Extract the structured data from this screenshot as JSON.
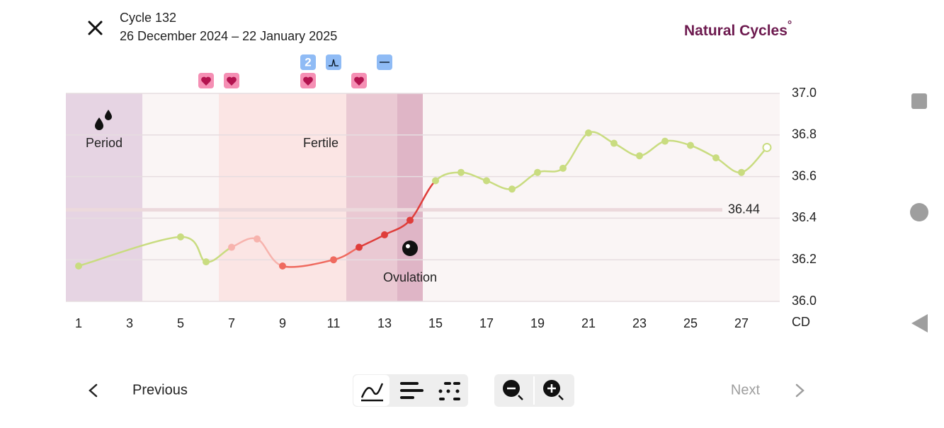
{
  "header": {
    "cycle": "Cycle 132",
    "dates": "26 December 2024 – 22 January 2025",
    "brand": "Natural Cycles",
    "brand_mark": "°"
  },
  "nav": {
    "previous": "Previous",
    "next": "Next"
  },
  "chart_data": {
    "type": "line",
    "x": [
      1,
      5,
      6,
      7,
      8,
      9,
      11,
      12,
      13,
      14,
      15,
      16,
      17,
      18,
      19,
      20,
      21,
      22,
      23,
      24,
      25,
      26,
      27,
      28
    ],
    "values": [
      36.17,
      36.31,
      36.19,
      36.26,
      36.3,
      36.17,
      36.2,
      36.26,
      36.32,
      36.39,
      36.58,
      36.62,
      36.58,
      36.54,
      36.62,
      36.64,
      36.81,
      36.76,
      36.7,
      36.77,
      36.75,
      36.69,
      36.62,
      36.74
    ],
    "point_colors": [
      "#c9dc80",
      "#c9dc80",
      "#c9dc80",
      "#f7b3ad",
      "#f7b3ad",
      "#ef6a5f",
      "#ef6a5f",
      "#df3d3a",
      "#df3d3a",
      "#df3d3a",
      "#c9dc80",
      "#c9dc80",
      "#c9dc80",
      "#c9dc80",
      "#c9dc80",
      "#c9dc80",
      "#c9dc80",
      "#c9dc80",
      "#c9dc80",
      "#c9dc80",
      "#c9dc80",
      "#c9dc80",
      "#c9dc80",
      "#c9dc80"
    ],
    "last_point_open": true,
    "xlim": [
      0.5,
      28.5
    ],
    "ylim": [
      36.0,
      37.0
    ],
    "xticks": [
      1,
      3,
      5,
      7,
      9,
      11,
      13,
      15,
      17,
      19,
      21,
      23,
      25,
      27
    ],
    "x_label": "CD",
    "yticks": [
      {
        "value": 36.0,
        "label": "36.0"
      },
      36.2,
      36.4,
      36.6,
      36.8,
      {
        "value": 37.0,
        "label": "37.0"
      }
    ],
    "grid": true,
    "cover_line": 36.44,
    "cover_line_label": "36.44",
    "period": {
      "label": "Period",
      "days": [
        1,
        3
      ],
      "color": "#e6d4e3"
    },
    "fertile": {
      "label": "Fertile",
      "days": [
        7,
        14
      ],
      "color": "#fbe5e4"
    },
    "peak": {
      "days": [
        12,
        14
      ],
      "color": "#eac9d3"
    },
    "ovulation": {
      "label": "Ovulation",
      "day": 14,
      "color": "#dfb5c6"
    },
    "hearts": [
      6,
      7,
      10,
      12
    ],
    "lh_test": {
      "day": 10,
      "label": "2"
    },
    "peak_test_day": 11,
    "negative_test_day": 13
  }
}
